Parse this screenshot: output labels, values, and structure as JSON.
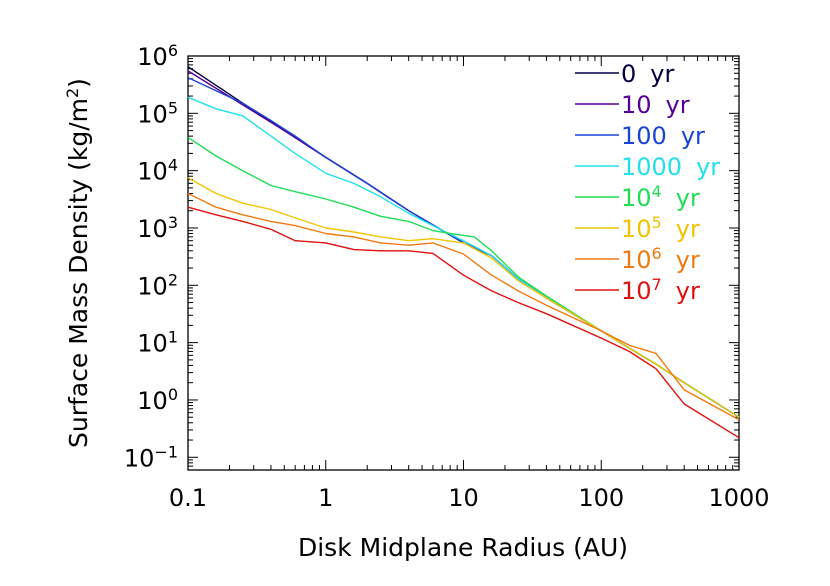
{
  "chart_data": {
    "type": "line",
    "xlabel": "Disk Midplane Radius (AU)",
    "ylabel_main": "Surface Mass Density (kg/m",
    "ylabel_sup": "2",
    "ylabel_tail": ")",
    "xscale": "log",
    "yscale": "log",
    "xlim": [
      0.1,
      1000
    ],
    "ylim": [
      0.06,
      1000000
    ],
    "x_ticks": [
      {
        "value": 0.1,
        "label": "0.1"
      },
      {
        "value": 1,
        "label": "1"
      },
      {
        "value": 10,
        "label": "10"
      },
      {
        "value": 100,
        "label": "100"
      },
      {
        "value": 1000,
        "label": "1000"
      }
    ],
    "y_ticks": [
      {
        "value": 0.1,
        "base": "10",
        "exp": "−1"
      },
      {
        "value": 1,
        "base": "10",
        "exp": "0"
      },
      {
        "value": 10,
        "base": "10",
        "exp": "1"
      },
      {
        "value": 100,
        "base": "10",
        "exp": "2"
      },
      {
        "value": 1000,
        "base": "10",
        "exp": "3"
      },
      {
        "value": 10000,
        "base": "10",
        "exp": "4"
      },
      {
        "value": 100000,
        "base": "10",
        "exp": "5"
      },
      {
        "value": 1000000,
        "base": "10",
        "exp": "6"
      }
    ],
    "legend_position": "top-right",
    "series": [
      {
        "name": "0 yr",
        "label_base": "0",
        "label_exp": "",
        "label_unit": "yr",
        "color": "#000040",
        "x": [
          0.1,
          0.25,
          0.5,
          1,
          2,
          4,
          10,
          16,
          25,
          40,
          100,
          160,
          250,
          400,
          1000
        ],
        "y": [
          650000,
          150000,
          50000,
          17000,
          6000,
          2000,
          550,
          330,
          130,
          60,
          16,
          8,
          4.2,
          2,
          0.5
        ]
      },
      {
        "name": "10 yr",
        "label_base": "10",
        "label_exp": "",
        "label_unit": "yr",
        "color": "#55009a",
        "x": [
          0.1,
          0.25,
          0.5,
          1,
          2,
          4,
          10,
          16,
          25,
          40,
          100,
          160,
          250,
          400,
          1000
        ],
        "y": [
          550000,
          140000,
          50000,
          17000,
          6000,
          2000,
          550,
          330,
          130,
          60,
          16,
          8,
          4.2,
          2,
          0.5
        ]
      },
      {
        "name": "100 yr",
        "label_base": "100",
        "label_exp": "",
        "label_unit": "yr",
        "color": "#1a44d6",
        "x": [
          0.1,
          0.25,
          0.4,
          0.6,
          1,
          2,
          4,
          10,
          16,
          25,
          40,
          100,
          160,
          250,
          400,
          1000
        ],
        "y": [
          420000,
          150000,
          75000,
          40000,
          17000,
          6000,
          2000,
          550,
          330,
          130,
          60,
          16,
          8,
          4.2,
          2,
          0.5
        ]
      },
      {
        "name": "1000 yr",
        "label_base": "1000",
        "label_exp": "",
        "label_unit": "yr",
        "color": "#22e0ea",
        "x": [
          0.1,
          0.16,
          0.25,
          0.4,
          0.6,
          1,
          1.6,
          2.5,
          4,
          6,
          10,
          16,
          25,
          40,
          100,
          160,
          250,
          400,
          1000
        ],
        "y": [
          190000,
          120000,
          90000,
          40000,
          20000,
          9000,
          6000,
          3500,
          1800,
          1100,
          600,
          330,
          130,
          60,
          16,
          8,
          4.2,
          2,
          0.5
        ]
      },
      {
        "name": "10⁴ yr",
        "label_base": "10",
        "label_exp": "4",
        "label_unit": "yr",
        "color": "#20dd55",
        "x": [
          0.1,
          0.16,
          0.25,
          0.4,
          0.6,
          1,
          1.6,
          2.5,
          4,
          6,
          8,
          12,
          16,
          25,
          40,
          100,
          160,
          250,
          400,
          1000
        ],
        "y": [
          38000,
          18000,
          10000,
          5500,
          4300,
          3200,
          2300,
          1600,
          1300,
          900,
          800,
          700,
          400,
          140,
          65,
          16,
          8,
          4.2,
          2,
          0.5
        ]
      },
      {
        "name": "10⁵ yr",
        "label_base": "10",
        "label_exp": "5",
        "label_unit": "yr",
        "color": "#f2c300",
        "x": [
          0.1,
          0.16,
          0.25,
          0.4,
          0.6,
          1,
          1.6,
          2.5,
          4,
          6,
          10,
          16,
          25,
          40,
          100,
          160,
          250,
          400,
          1000
        ],
        "y": [
          7500,
          4000,
          2700,
          2100,
          1500,
          1000,
          850,
          700,
          600,
          650,
          550,
          300,
          120,
          60,
          16,
          8,
          4.2,
          2,
          0.5
        ]
      },
      {
        "name": "10⁶ yr",
        "label_base": "10",
        "label_exp": "6",
        "label_unit": "yr",
        "color": "#f07a10",
        "x": [
          0.1,
          0.16,
          0.25,
          0.4,
          0.6,
          1,
          1.6,
          2.5,
          4,
          6,
          10,
          16,
          25,
          40,
          100,
          160,
          250,
          400,
          1000
        ],
        "y": [
          4000,
          2300,
          1700,
          1300,
          1100,
          800,
          700,
          550,
          500,
          550,
          350,
          150,
          80,
          45,
          16,
          9,
          6.5,
          1.5,
          0.45
        ]
      },
      {
        "name": "10⁷ yr",
        "label_base": "10",
        "label_exp": "7",
        "label_unit": "yr",
        "color": "#e01010",
        "x": [
          0.1,
          0.16,
          0.25,
          0.4,
          0.6,
          1,
          1.6,
          2.5,
          4,
          6,
          10,
          16,
          25,
          40,
          100,
          160,
          250,
          400,
          1000
        ],
        "y": [
          2300,
          1700,
          1300,
          950,
          600,
          550,
          420,
          400,
          400,
          360,
          150,
          80,
          50,
          32,
          12,
          7,
          3.5,
          0.85,
          0.22
        ]
      }
    ]
  }
}
